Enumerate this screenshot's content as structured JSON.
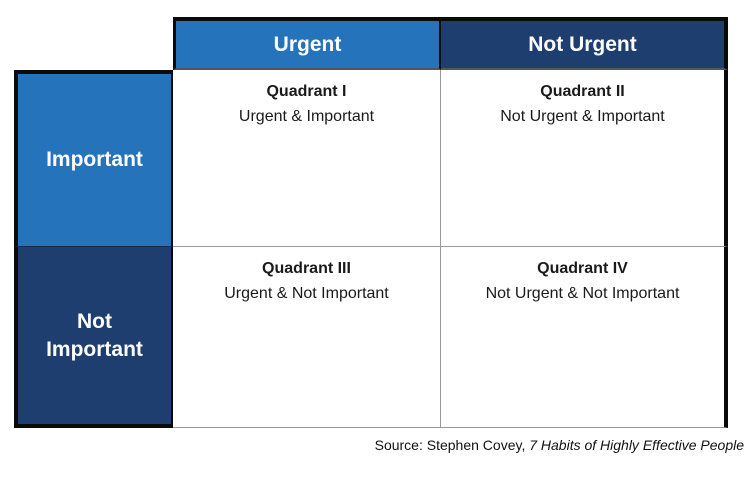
{
  "matrix": {
    "column_headers": [
      {
        "label": "Urgent"
      },
      {
        "label": "Not Urgent"
      }
    ],
    "row_headers": [
      {
        "label": "Important"
      },
      {
        "label": "Not Important"
      }
    ],
    "quadrants": [
      {
        "title": "Quadrant I",
        "subtitle": "Urgent & Important"
      },
      {
        "title": "Quadrant II",
        "subtitle": "Not Urgent & Important"
      },
      {
        "title": "Quadrant III",
        "subtitle": "Urgent & Not Important"
      },
      {
        "title": "Quadrant IV",
        "subtitle": "Not Urgent & Not Important"
      }
    ],
    "colors": {
      "urgent_header": "#2573BB",
      "not_urgent_header": "#1E3E6F",
      "important_header": "#2573BB",
      "not_important_header": "#1E3E6F",
      "border_black": "#0a0a0a",
      "divider_gray": "#999999"
    }
  },
  "source": {
    "prefix": "Source: Stephen Covey, ",
    "title_italic": "7 Habits of Highly Effective People"
  }
}
